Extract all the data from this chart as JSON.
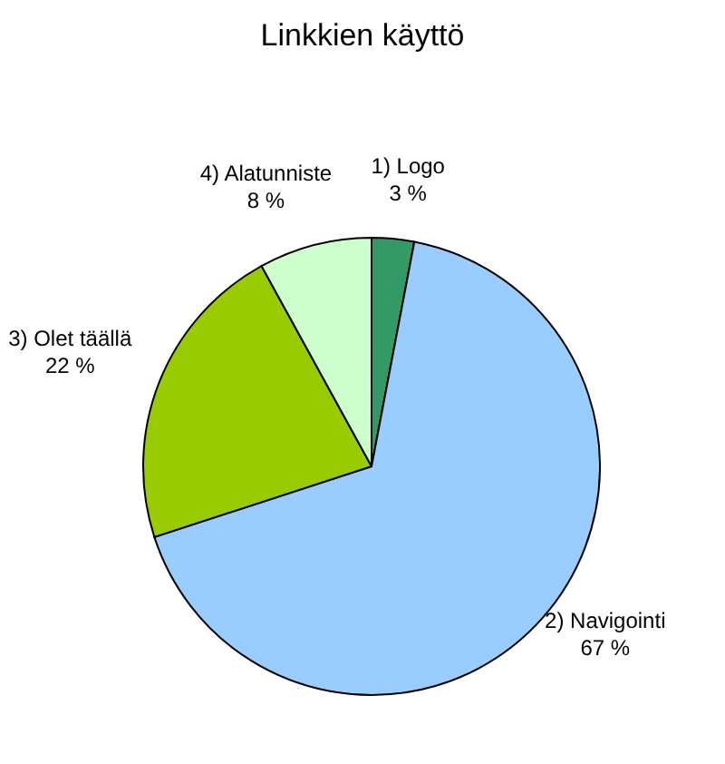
{
  "chart_data": {
    "type": "pie",
    "title": "Linkkien käyttö",
    "categories": [
      "1) Logo",
      "2) Navigointi",
      "3) Olet täällä",
      "4) Alatunniste"
    ],
    "values": [
      3,
      67,
      22,
      8
    ],
    "value_labels": [
      "3 %",
      "67 %",
      "22 %",
      "8 %"
    ],
    "colors": [
      "#339966",
      "#99ccff",
      "#99cc00",
      "#ccffcc"
    ],
    "legend": false
  }
}
